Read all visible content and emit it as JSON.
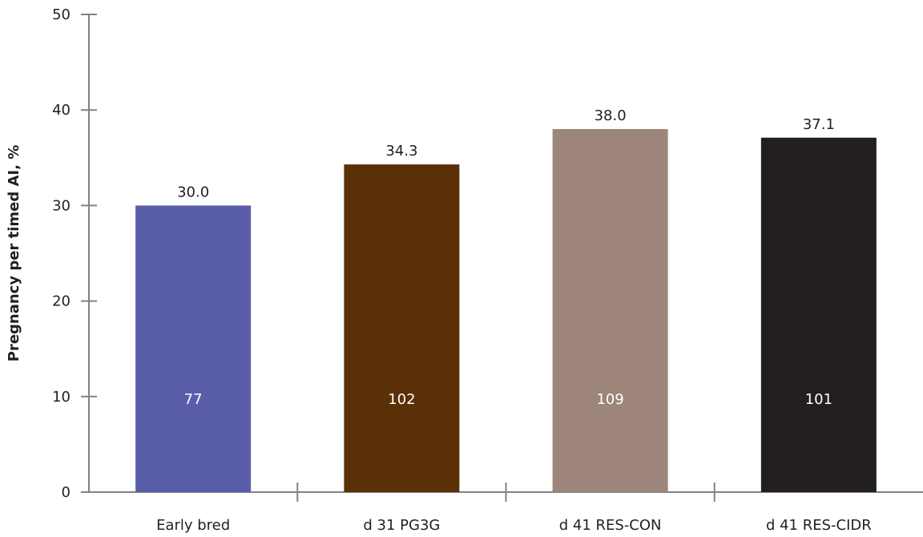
{
  "chart_data": {
    "type": "bar",
    "title": "",
    "xlabel": "",
    "ylabel": "Pregnancy per timed AI, %",
    "ylim": [
      0,
      50
    ],
    "yticks": [
      0,
      10,
      20,
      30,
      40,
      50
    ],
    "categories": [
      "Early bred",
      "d 31 PG3G",
      "d 41 RES-CON",
      "d 41 RES-CIDR"
    ],
    "values": [
      30.0,
      34.3,
      38.0,
      37.1
    ],
    "value_labels": [
      "30.0",
      "34.3",
      "38.0",
      "37.1"
    ],
    "n_labels": [
      "77",
      "102",
      "109",
      "101"
    ],
    "colors": [
      "#5a5ea9",
      "#5a3007",
      "#9e857a",
      "#231f20"
    ],
    "grid": false,
    "legend": "none"
  }
}
